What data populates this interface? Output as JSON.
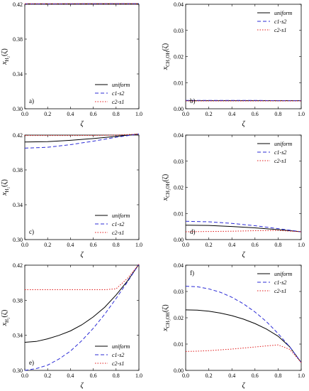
{
  "colors": {
    "uniform": "#000000",
    "c1-s2": "#2b2bd6",
    "c2-s1": "#e01a1a"
  },
  "legend": [
    "uniform",
    "c1-s2",
    "c2-s1"
  ],
  "chart_data": [
    {
      "type": "line",
      "panel": "a)",
      "xlabel": "ζ",
      "ylabel_main": "x",
      "ylabel_sub": "H₂",
      "ylabel_tail": "(ζ)",
      "xlim": [
        0.0,
        1.0
      ],
      "ylim": [
        0.3,
        0.42
      ],
      "xticks": [
        "0.0",
        "0.2",
        "0.4",
        "0.6",
        "0.8",
        "1.0"
      ],
      "yticks": [
        "0.30",
        "0.34",
        "0.38",
        "0.42"
      ],
      "legend_position": "bottom-right",
      "x": [
        0.0,
        0.2,
        0.4,
        0.6,
        0.8,
        1.0
      ],
      "series": [
        {
          "name": "uniform",
          "style": "solid",
          "values": [
            0.4205,
            0.4205,
            0.4205,
            0.4206,
            0.4206,
            0.4206
          ]
        },
        {
          "name": "c1-s2",
          "style": "dashed",
          "values": [
            0.4204,
            0.4204,
            0.4205,
            0.4205,
            0.4206,
            0.4206
          ]
        },
        {
          "name": "c2-s1",
          "style": "dotted",
          "values": [
            0.4206,
            0.4206,
            0.4206,
            0.4206,
            0.4206,
            0.4206
          ]
        }
      ]
    },
    {
      "type": "line",
      "panel": "b)",
      "xlabel": "ζ",
      "ylabel_main": "x",
      "ylabel_sub": "CH₃OH",
      "ylabel_tail": "(ζ)",
      "xlim": [
        0.0,
        1.0
      ],
      "ylim": [
        0.0,
        0.04
      ],
      "xticks": [
        "0.0",
        "0.2",
        "0.4",
        "0.6",
        "0.8",
        "1.0"
      ],
      "yticks": [
        "0.00",
        "0.01",
        "0.02",
        "0.03",
        "0.04"
      ],
      "legend_position": "top-right",
      "x": [
        0.0,
        0.2,
        0.4,
        0.6,
        0.8,
        1.0
      ],
      "series": [
        {
          "name": "uniform",
          "style": "solid",
          "values": [
            0.0031,
            0.0031,
            0.0031,
            0.0031,
            0.0031,
            0.0031
          ]
        },
        {
          "name": "c1-s2",
          "style": "dashed",
          "values": [
            0.0032,
            0.0032,
            0.0032,
            0.0032,
            0.0031,
            0.0031
          ]
        },
        {
          "name": "c2-s1",
          "style": "dotted",
          "values": [
            0.003,
            0.003,
            0.003,
            0.003,
            0.003,
            0.003
          ]
        }
      ]
    },
    {
      "type": "line",
      "panel": "c)",
      "xlabel": "ζ",
      "ylabel_main": "x",
      "ylabel_sub": "H₂",
      "ylabel_tail": "(ζ)",
      "xlim": [
        0.0,
        1.0
      ],
      "ylim": [
        0.3,
        0.42
      ],
      "xticks": [
        "0.0",
        "0.2",
        "0.4",
        "0.6",
        "0.8",
        "1.0"
      ],
      "yticks": [
        "0.30",
        "0.34",
        "0.38",
        "0.42"
      ],
      "legend_position": "bottom-right",
      "x": [
        0.0,
        0.2,
        0.4,
        0.6,
        0.8,
        1.0
      ],
      "series": [
        {
          "name": "uniform",
          "style": "solid",
          "values": [
            0.412,
            0.4125,
            0.414,
            0.416,
            0.4185,
            0.4212
          ]
        },
        {
          "name": "c1-s2",
          "style": "dashed",
          "values": [
            0.405,
            0.406,
            0.409,
            0.413,
            0.4175,
            0.4212
          ]
        },
        {
          "name": "c2-s1",
          "style": "dotted",
          "values": [
            0.4195,
            0.4195,
            0.4195,
            0.4196,
            0.42,
            0.4212
          ]
        }
      ]
    },
    {
      "type": "line",
      "panel": "d)",
      "xlabel": "ζ",
      "ylabel_main": "x",
      "ylabel_sub": "CH₃OH",
      "ylabel_tail": "(ζ)",
      "xlim": [
        0.0,
        1.0
      ],
      "ylim": [
        0.0,
        0.04
      ],
      "xticks": [
        "0.0",
        "0.2",
        "0.4",
        "0.6",
        "0.8",
        "1.0"
      ],
      "yticks": [
        "0.00",
        "0.01",
        "0.02",
        "0.03",
        "0.04"
      ],
      "legend_position": "top-right",
      "x": [
        0.0,
        0.2,
        0.4,
        0.6,
        0.8,
        1.0
      ],
      "series": [
        {
          "name": "uniform",
          "style": "solid",
          "values": [
            0.0055,
            0.0054,
            0.005,
            0.0045,
            0.0038,
            0.003
          ]
        },
        {
          "name": "c1-s2",
          "style": "dashed",
          "values": [
            0.007,
            0.0068,
            0.0062,
            0.0053,
            0.0042,
            0.003
          ]
        },
        {
          "name": "c2-s1",
          "style": "dotted",
          "values": [
            0.003,
            0.0031,
            0.0032,
            0.0034,
            0.0035,
            0.003
          ]
        }
      ]
    },
    {
      "type": "line",
      "panel": "e)",
      "xlabel": "ζ",
      "ylabel_main": "x",
      "ylabel_sub": "H₂",
      "ylabel_tail": "(ζ)",
      "xlim": [
        0.0,
        1.0
      ],
      "ylim": [
        0.3,
        0.42
      ],
      "xticks": [
        "0.0",
        "0.2",
        "0.4",
        "0.6",
        "0.8",
        "1.0"
      ],
      "yticks": [
        "0.30",
        "0.34",
        "0.38",
        "0.42"
      ],
      "legend_position": "bottom-right",
      "x": [
        0.0,
        0.1,
        0.2,
        0.3,
        0.4,
        0.5,
        0.6,
        0.7,
        0.8,
        0.9,
        1.0
      ],
      "series": [
        {
          "name": "uniform",
          "style": "solid",
          "values": [
            0.332,
            0.333,
            0.336,
            0.34,
            0.345,
            0.352,
            0.361,
            0.372,
            0.386,
            0.402,
            0.421
          ]
        },
        {
          "name": "c1-s2",
          "style": "dashed",
          "values": [
            0.3,
            0.302,
            0.306,
            0.313,
            0.322,
            0.334,
            0.348,
            0.364,
            0.382,
            0.401,
            0.421
          ]
        },
        {
          "name": "c2-s1",
          "style": "dotted",
          "values": [
            0.392,
            0.392,
            0.392,
            0.392,
            0.392,
            0.392,
            0.392,
            0.392,
            0.393,
            0.405,
            0.421
          ]
        }
      ]
    },
    {
      "type": "line",
      "panel": "f)",
      "xlabel": "ζ",
      "ylabel_main": "x",
      "ylabel_sub": "CH₃OH",
      "ylabel_tail": "(ζ)",
      "xlim": [
        0.0,
        1.0
      ],
      "ylim": [
        0.0,
        0.04
      ],
      "xticks": [
        "0.0",
        "0.2",
        "0.4",
        "0.6",
        "0.8",
        "1.0"
      ],
      "yticks": [
        "0.00",
        "0.01",
        "0.02",
        "0.03",
        "0.04"
      ],
      "legend_position": "top-right",
      "x": [
        0.0,
        0.1,
        0.2,
        0.3,
        0.4,
        0.5,
        0.6,
        0.7,
        0.8,
        0.9,
        1.0
      ],
      "series": [
        {
          "name": "uniform",
          "style": "solid",
          "values": [
            0.023,
            0.0229,
            0.0225,
            0.0218,
            0.0208,
            0.0195,
            0.0178,
            0.0157,
            0.013,
            0.009,
            0.003
          ]
        },
        {
          "name": "c1-s2",
          "style": "dashed",
          "values": [
            0.032,
            0.0318,
            0.031,
            0.0297,
            0.0278,
            0.0253,
            0.0222,
            0.0185,
            0.014,
            0.009,
            0.003
          ]
        },
        {
          "name": "c2-s1",
          "style": "dotted",
          "values": [
            0.0072,
            0.0073,
            0.0075,
            0.0078,
            0.0081,
            0.0085,
            0.0089,
            0.0093,
            0.0097,
            0.008,
            0.003
          ]
        }
      ]
    }
  ]
}
